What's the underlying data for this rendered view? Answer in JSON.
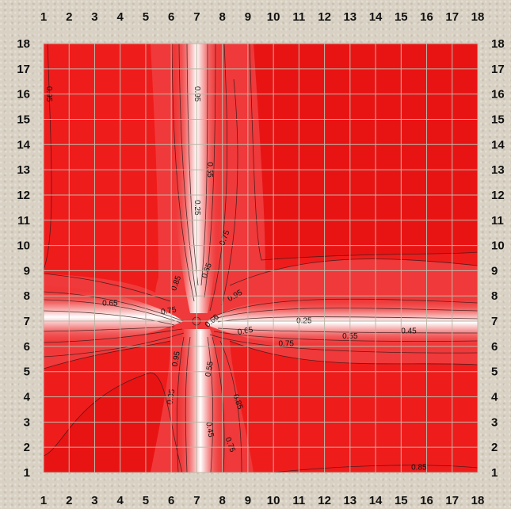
{
  "chart_data": {
    "type": "heatmap",
    "title": "",
    "xlabel": "",
    "ylabel": "",
    "x_ticks": [
      "1",
      "2",
      "3",
      "4",
      "5",
      "6",
      "7",
      "8",
      "9",
      "10",
      "11",
      "12",
      "13",
      "14",
      "15",
      "16",
      "17",
      "18"
    ],
    "y_ticks": [
      "1",
      "2",
      "3",
      "4",
      "5",
      "6",
      "7",
      "8",
      "9",
      "10",
      "11",
      "12",
      "13",
      "14",
      "15",
      "16",
      "17",
      "18"
    ],
    "xlim": [
      1,
      18
    ],
    "ylim": [
      1,
      18
    ],
    "grid": true,
    "colors": {
      "low": "#ffffff",
      "high": "#ef1c1c",
      "contour": "#3a1a1a"
    },
    "contour_labels": [
      {
        "text": "0.95",
        "x": 1.2,
        "y": 16.0,
        "rotate": 90
      },
      {
        "text": "0.95",
        "x": 7.0,
        "y": 16.0,
        "rotate": 90
      },
      {
        "text": "0.55",
        "x": 7.5,
        "y": 13.0,
        "rotate": 90
      },
      {
        "text": "0.25",
        "x": 7.0,
        "y": 11.5,
        "rotate": 90
      },
      {
        "text": "0.75",
        "x": 8.1,
        "y": 10.3,
        "rotate": -70
      },
      {
        "text": "0.65",
        "x": 7.4,
        "y": 9.0,
        "rotate": -70
      },
      {
        "text": "0.85",
        "x": 6.2,
        "y": 8.5,
        "rotate": -70
      },
      {
        "text": "0.95",
        "x": 8.5,
        "y": 8.0,
        "rotate": -30
      },
      {
        "text": "0.65",
        "x": 3.6,
        "y": 7.7,
        "rotate": 0
      },
      {
        "text": "0.75",
        "x": 5.9,
        "y": 7.4,
        "rotate": -10
      },
      {
        "text": "0.65",
        "x": 7.6,
        "y": 7.0,
        "rotate": -40
      },
      {
        "text": "0.25",
        "x": 11.2,
        "y": 7.0,
        "rotate": 0
      },
      {
        "text": "0.65",
        "x": 8.9,
        "y": 6.6,
        "rotate": -10
      },
      {
        "text": "0.75",
        "x": 10.5,
        "y": 6.1,
        "rotate": 0
      },
      {
        "text": "0.55",
        "x": 13.0,
        "y": 6.4,
        "rotate": 0
      },
      {
        "text": "0.45",
        "x": 15.3,
        "y": 6.6,
        "rotate": 0
      },
      {
        "text": "0.95",
        "x": 6.2,
        "y": 5.5,
        "rotate": -80
      },
      {
        "text": "0.55",
        "x": 7.5,
        "y": 5.1,
        "rotate": -80
      },
      {
        "text": "0.95",
        "x": 6.0,
        "y": 4.0,
        "rotate": -80
      },
      {
        "text": "0.85",
        "x": 8.6,
        "y": 3.8,
        "rotate": 70
      },
      {
        "text": "0.45",
        "x": 7.5,
        "y": 2.7,
        "rotate": 80
      },
      {
        "text": "0.75",
        "x": 8.3,
        "y": 2.1,
        "rotate": 70
      },
      {
        "text": "0.85",
        "x": 15.7,
        "y": 1.2,
        "rotate": 0
      }
    ]
  }
}
